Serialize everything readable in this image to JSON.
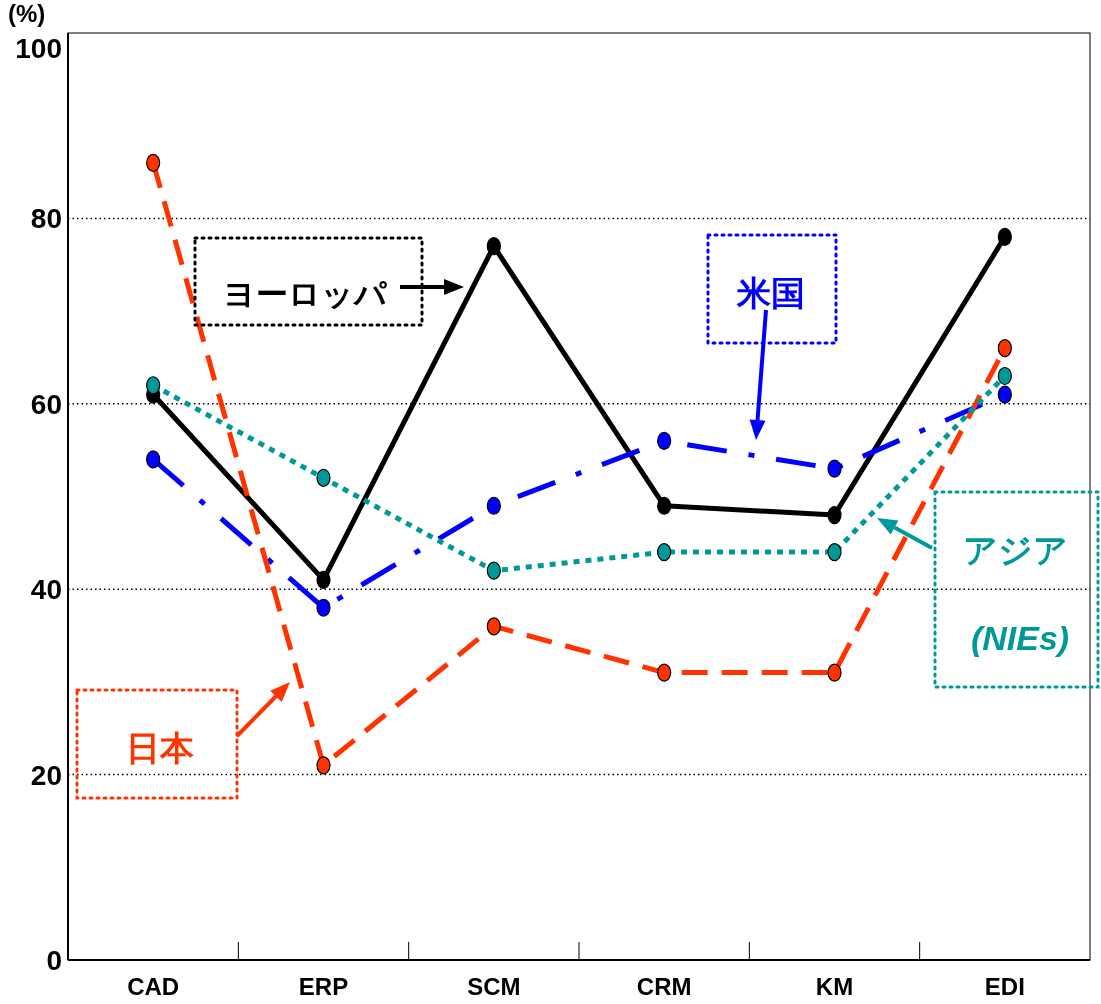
{
  "chart_data": {
    "type": "line",
    "ylabel": "(%)",
    "categories": [
      "CAD",
      "ERP",
      "SCM",
      "CRM",
      "KM",
      "EDI"
    ],
    "ylim": [
      0,
      100
    ],
    "yticks": [
      0,
      20,
      40,
      60,
      80,
      100
    ],
    "grid": "y",
    "legend": "top left",
    "marker": "circle",
    "series": [
      {
        "name": "ヨーロッパ",
        "color": "#000000",
        "line_style": "solid",
        "values": [
          61,
          41,
          77,
          49,
          48,
          78
        ]
      },
      {
        "name": "米国",
        "color": "#0000ff",
        "line_style": "dashdot",
        "values": [
          54,
          38,
          49,
          56,
          53,
          61
        ]
      },
      {
        "name": "日本",
        "color": "#ff3300",
        "line_style": "dashed",
        "values": [
          86,
          21,
          36,
          31,
          31,
          66
        ]
      },
      {
        "name": "アジア\n(NIEs)",
        "color": "#009999",
        "line_style": "dotted",
        "values": [
          62,
          52,
          42,
          44,
          44,
          63
        ]
      }
    ]
  }
}
